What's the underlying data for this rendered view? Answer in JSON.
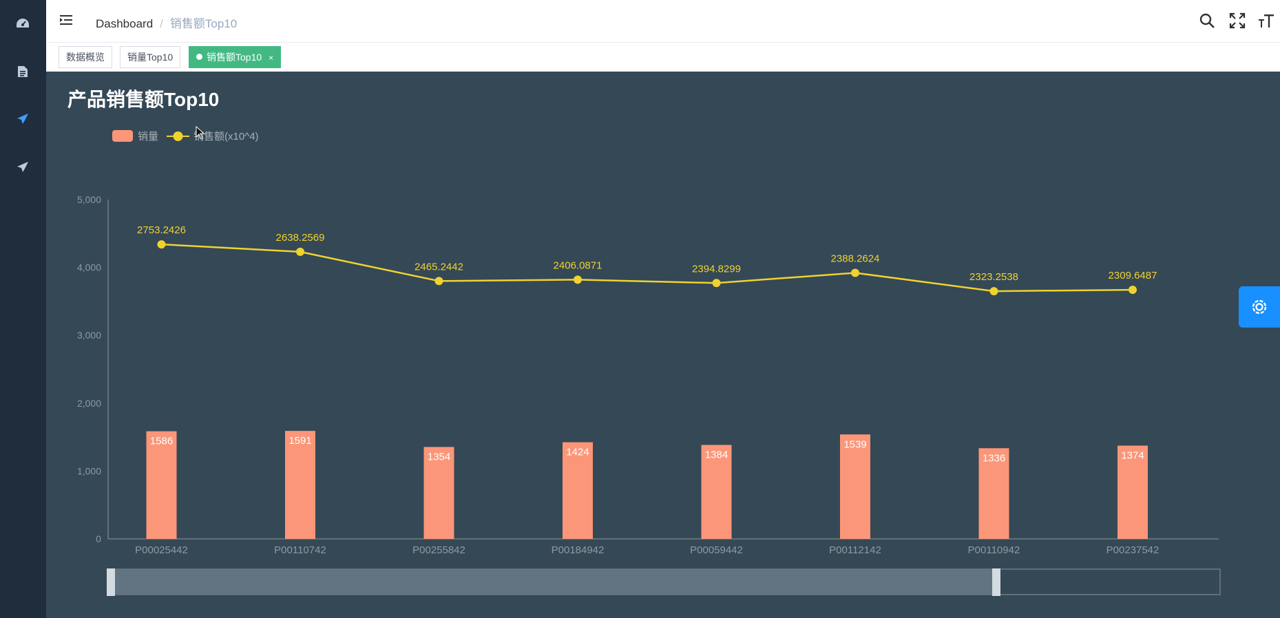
{
  "sidebar": {
    "items": [
      {
        "icon": "dashboard-icon"
      },
      {
        "icon": "document-icon"
      },
      {
        "icon": "send-icon",
        "active": true
      },
      {
        "icon": "send-icon"
      }
    ]
  },
  "header": {
    "breadcrumb": [
      "Dashboard",
      "销售额Top10"
    ]
  },
  "tags": [
    {
      "label": "数据概览"
    },
    {
      "label": "销量Top10"
    },
    {
      "label": "销售额Top10",
      "active": true,
      "close": "×"
    }
  ],
  "colors": {
    "bar": "#fc9679",
    "line": "#f0d32f",
    "accent": "#42b983",
    "settings": "#1890ff"
  },
  "chart_data": {
    "type": "bar",
    "title": "产品销售额Top10",
    "categories": [
      "P00025442",
      "P00110742",
      "P00255842",
      "P00184942",
      "P00059442",
      "P00112142",
      "P00110942",
      "P00237542"
    ],
    "series": [
      {
        "name": "销量",
        "type": "bar",
        "values": [
          1586,
          1591,
          1354,
          1424,
          1384,
          1539,
          1336,
          1374
        ]
      },
      {
        "name": "销售额(x10^4)",
        "type": "line",
        "values": [
          2753.2426,
          2638.2569,
          2465.2442,
          2406.0871,
          2394.8299,
          2388.2624,
          2323.2538,
          2309.6487
        ],
        "plot_y": [
          4340,
          4230,
          3800,
          3820,
          3770,
          3920,
          3650,
          3670
        ]
      }
    ],
    "yticks": [
      "0",
      "1,000",
      "2,000",
      "3,000",
      "4,000",
      "5,000"
    ],
    "ylim": [
      0,
      5000
    ],
    "legend_position": "top-left",
    "grid": false,
    "datazoom": {
      "start": 0,
      "end": 80
    }
  }
}
